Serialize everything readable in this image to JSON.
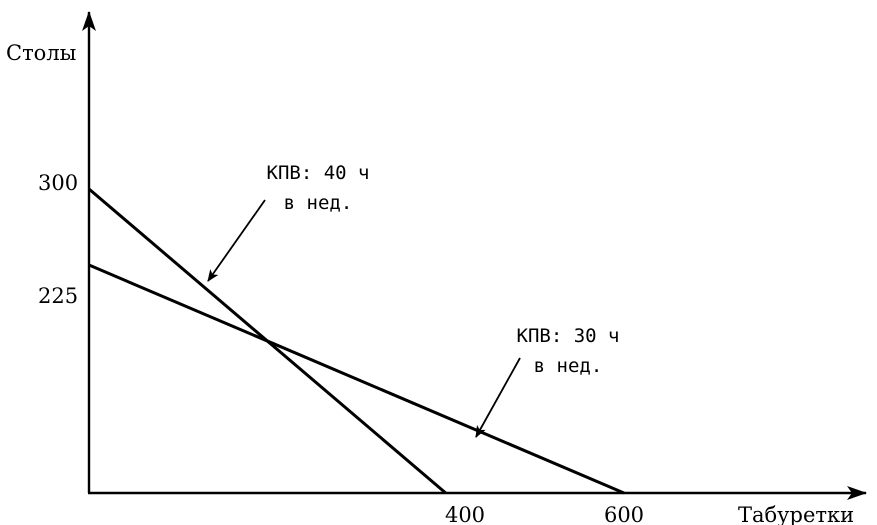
{
  "chart_data": {
    "type": "line",
    "xlabel": "Табуретки",
    "ylabel": "Столы",
    "xlim": [
      0,
      755
    ],
    "ylim": [
      0,
      480
    ],
    "x_ticks": [
      400,
      600
    ],
    "y_ticks": [
      225,
      300
    ],
    "x_tick_labels": [
      "400",
      "600"
    ],
    "y_tick_labels": [
      "225",
      "300"
    ],
    "grid": false,
    "legend": "none",
    "series": [
      {
        "points": [
          [
            0,
            300
          ],
          [
            400,
            0
          ]
        ]
      },
      {
        "points": [
          [
            0,
            225
          ],
          [
            600,
            0
          ]
        ]
      }
    ],
    "annotations": [
      {
        "line1": "КПВ: 40 ч",
        "line2": "в нед.",
        "points_to_series": 0
      },
      {
        "line1": "КПВ: 30 ч",
        "line2": "в нед.",
        "points_to_series": 1
      }
    ]
  }
}
